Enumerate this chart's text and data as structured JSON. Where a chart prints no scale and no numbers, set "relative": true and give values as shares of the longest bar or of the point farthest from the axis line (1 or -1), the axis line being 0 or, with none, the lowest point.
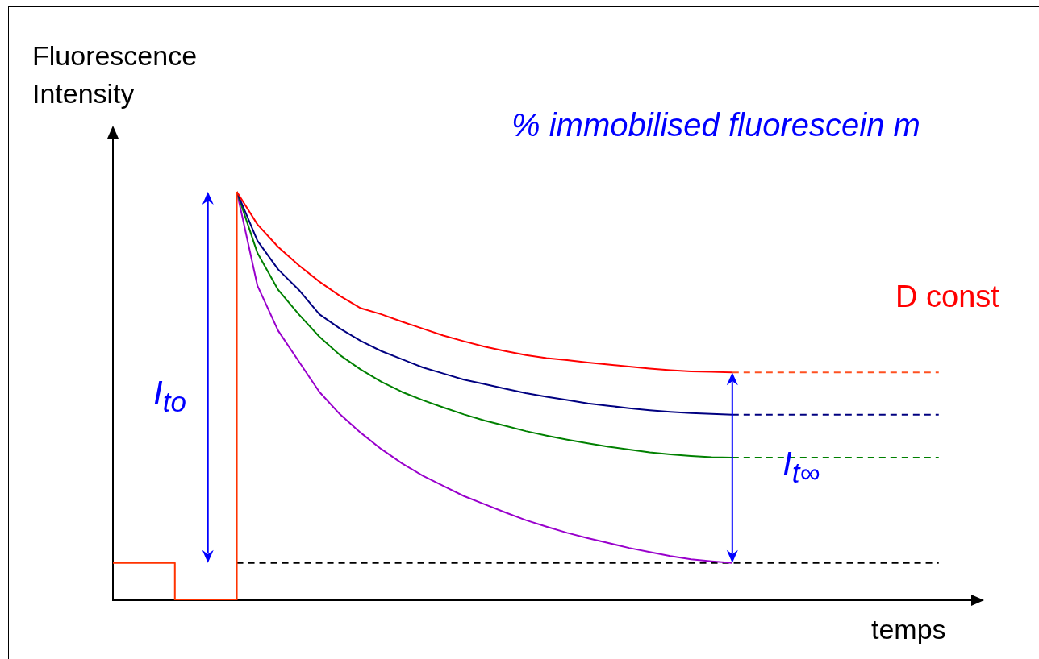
{
  "chart_data": {
    "type": "line",
    "relative": true,
    "legend": false,
    "grid": false,
    "tick_labels": false,
    "marker": "none",
    "ylabel": "Fluorescence\nIntensity",
    "xlabel": "temps",
    "annotations": [
      "% immobilised fluorescein m",
      "D const",
      "I$_{to}$",
      "I$_{t∞}$"
    ],
    "categories": [
      null,
      null,
      null,
      null,
      null,
      null,
      null,
      null,
      null,
      null,
      null,
      null,
      null,
      null,
      null,
      null,
      null,
      null,
      null,
      null,
      null,
      null,
      null,
      null,
      null,
      null,
      null,
      null,
      null,
      null,
      null,
      null,
      null,
      null,
      null,
      null,
      null,
      null,
      null,
      null,
      null
    ],
    "series": [
      {
        "type": "step",
        "color": "#ff3300",
        "line_style": "solid",
        "values": [
          0.091,
          0.091,
          0.091,
          0,
          0,
          0,
          1,
          null,
          null,
          null,
          null,
          null,
          null,
          null,
          null,
          null,
          null,
          null,
          null,
          null,
          null,
          null,
          null,
          null,
          null,
          null,
          null,
          null,
          null,
          null,
          null,
          null,
          null,
          null,
          null,
          null,
          null,
          null,
          null,
          null,
          null
        ]
      },
      {
        "color": "#ff0000",
        "line_style": "solid",
        "values": [
          null,
          null,
          null,
          null,
          null,
          null,
          1,
          0.92,
          0.865,
          0.82,
          0.78,
          0.745,
          0.715,
          0.7,
          0.682,
          0.665,
          0.648,
          0.634,
          0.621,
          0.61,
          0.6,
          0.593,
          0.588,
          0.582,
          0.577,
          0.572,
          0.567,
          0.563,
          0.56,
          0.559,
          0.558,
          null,
          null,
          null,
          null,
          null,
          null,
          null,
          null,
          null,
          null
        ]
      },
      {
        "color": "#000080",
        "line_style": "solid",
        "values": [
          null,
          null,
          null,
          null,
          null,
          null,
          1,
          0.88,
          0.81,
          0.76,
          0.7,
          0.665,
          0.635,
          0.61,
          0.59,
          0.57,
          0.555,
          0.54,
          0.529,
          0.518,
          0.507,
          0.498,
          0.49,
          0.482,
          0.476,
          0.47,
          0.465,
          0.461,
          0.458,
          0.456,
          0.454,
          null,
          null,
          null,
          null,
          null,
          null,
          null,
          null,
          null,
          null
        ]
      },
      {
        "color": "#008000",
        "line_style": "solid",
        "values": [
          null,
          null,
          null,
          null,
          null,
          null,
          1,
          0.85,
          0.76,
          0.7,
          0.645,
          0.6,
          0.565,
          0.535,
          0.51,
          0.49,
          0.472,
          0.455,
          0.44,
          0.427,
          0.414,
          0.403,
          0.393,
          0.384,
          0.376,
          0.369,
          0.362,
          0.357,
          0.353,
          0.35,
          0.349,
          null,
          null,
          null,
          null,
          null,
          null,
          null,
          null,
          null,
          null
        ]
      },
      {
        "color": "#9900cc",
        "line_style": "solid",
        "values": [
          null,
          null,
          null,
          null,
          null,
          null,
          1,
          0.77,
          0.66,
          0.585,
          0.51,
          0.455,
          0.41,
          0.37,
          0.335,
          0.305,
          0.28,
          0.255,
          0.235,
          0.215,
          0.196,
          0.18,
          0.165,
          0.152,
          0.14,
          0.128,
          0.118,
          0.108,
          0.1,
          0.095,
          0.091,
          null,
          null,
          null,
          null,
          null,
          null,
          null,
          null,
          null,
          null
        ]
      },
      {
        "color": "#ff5020",
        "line_style": "dashed",
        "values": [
          null,
          null,
          null,
          null,
          null,
          null,
          null,
          null,
          null,
          null,
          null,
          null,
          null,
          null,
          null,
          null,
          null,
          null,
          null,
          null,
          null,
          null,
          null,
          null,
          null,
          null,
          null,
          null,
          null,
          null,
          0.558,
          0.558,
          0.558,
          0.558,
          0.558,
          0.558,
          0.558,
          0.558,
          0.558,
          0.558,
          0.558
        ]
      },
      {
        "color": "#000080",
        "line_style": "dashed",
        "values": [
          null,
          null,
          null,
          null,
          null,
          null,
          null,
          null,
          null,
          null,
          null,
          null,
          null,
          null,
          null,
          null,
          null,
          null,
          null,
          null,
          null,
          null,
          null,
          null,
          null,
          null,
          null,
          null,
          null,
          null,
          0.454,
          0.454,
          0.454,
          0.454,
          0.454,
          0.454,
          0.454,
          0.454,
          0.454,
          0.454,
          0.454
        ]
      },
      {
        "color": "#008000",
        "line_style": "dashed",
        "values": [
          null,
          null,
          null,
          null,
          null,
          null,
          null,
          null,
          null,
          null,
          null,
          null,
          null,
          null,
          null,
          null,
          null,
          null,
          null,
          null,
          null,
          null,
          null,
          null,
          null,
          null,
          null,
          null,
          null,
          null,
          0.349,
          0.349,
          0.349,
          0.349,
          0.349,
          0.349,
          0.349,
          0.349,
          0.349,
          0.349,
          0.349
        ]
      },
      {
        "color": "#000000",
        "line_style": "dashed",
        "values": [
          null,
          null,
          null,
          null,
          null,
          null,
          0.091,
          0.091,
          0.091,
          0.091,
          0.091,
          0.091,
          0.091,
          0.091,
          0.091,
          0.091,
          0.091,
          0.091,
          0.091,
          0.091,
          0.091,
          0.091,
          0.091,
          0.091,
          0.091,
          0.091,
          0.091,
          0.091,
          0.091,
          0.091,
          0.091,
          0.091,
          0.091,
          0.091,
          0.091,
          0.091,
          0.091,
          0.091,
          0.091,
          0.091,
          0.091
        ]
      }
    ]
  }
}
